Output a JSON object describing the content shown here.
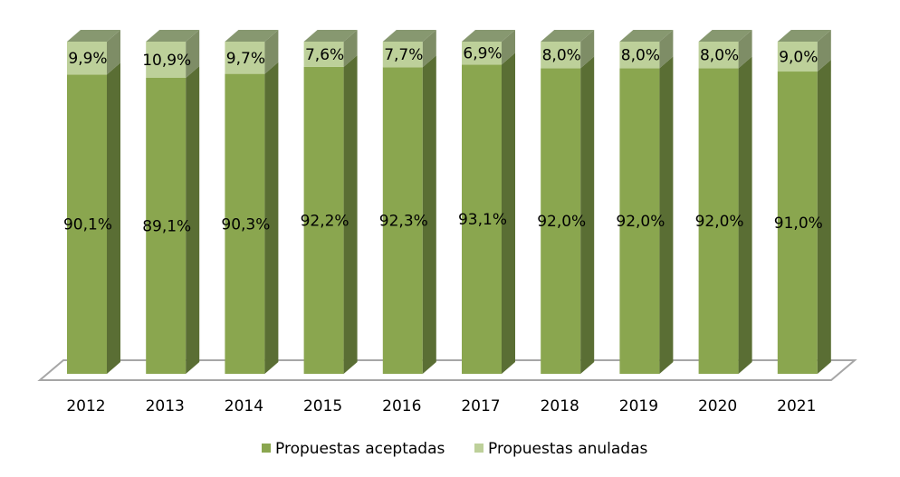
{
  "chart_data": {
    "type": "bar",
    "stacked": true,
    "percent_stacked": true,
    "style": "3d-column",
    "title": "",
    "xlabel": "",
    "ylabel": "",
    "ylim": [
      0,
      100
    ],
    "grid": false,
    "legend_position": "bottom",
    "categories": [
      "2012",
      "2013",
      "2014",
      "2015",
      "2016",
      "2017",
      "2018",
      "2019",
      "2020",
      "2021"
    ],
    "series": [
      {
        "name": "Propuestas aceptadas",
        "color": "#8aa64f",
        "values": [
          90.1,
          89.1,
          90.3,
          92.2,
          92.3,
          93.1,
          92.0,
          92.0,
          92.0,
          91.0
        ],
        "labels": [
          "90,1%",
          "89,1%",
          "90,3%",
          "92,2%",
          "92,3%",
          "93,1%",
          "92,0%",
          "92,0%",
          "92,0%",
          "91,0%"
        ]
      },
      {
        "name": "Propuestas anuladas",
        "color": "#bdd09a",
        "values": [
          9.9,
          10.9,
          9.7,
          7.6,
          7.7,
          6.9,
          8.0,
          8.0,
          8.0,
          9.0
        ],
        "labels": [
          "9,9%",
          "10,9%",
          "9,7%",
          "7,6%",
          "7,7%",
          "6,9%",
          "8,0%",
          "8,0%",
          "8,0%",
          "9,0%"
        ]
      }
    ]
  }
}
